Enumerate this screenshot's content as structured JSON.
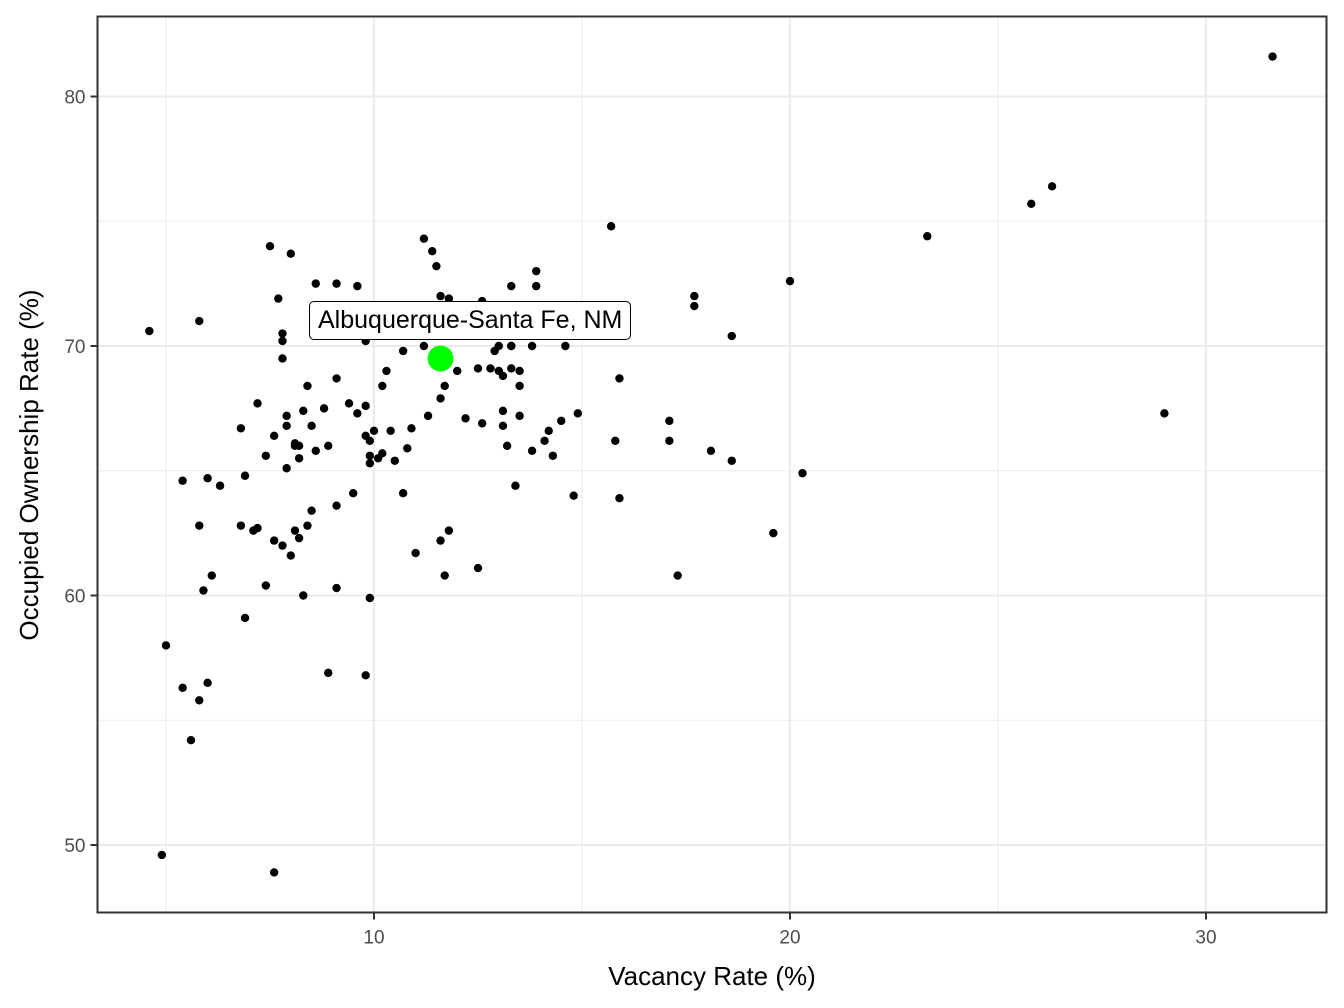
{
  "chart_data": {
    "type": "scatter",
    "title": "",
    "xlabel": "Vacancy Rate (%)",
    "ylabel": "Occupied Ownership Rate (%)",
    "xlim": [
      3.3,
      32.9
    ],
    "ylim": [
      47.3,
      83.3
    ],
    "x_ticks": [
      10,
      20,
      30
    ],
    "y_ticks": [
      50,
      60,
      70,
      80
    ],
    "grid": true,
    "legend": "none",
    "point_color": "#000000",
    "highlight": {
      "label": "Albuquerque-Santa Fe, NM",
      "x": 11.6,
      "y": 69.5,
      "color": "#00ff00"
    },
    "points": [
      [
        31.6,
        81.6
      ],
      [
        26.3,
        76.4
      ],
      [
        25.8,
        75.7
      ],
      [
        23.3,
        74.4
      ],
      [
        29.0,
        67.3
      ],
      [
        20.0,
        72.6
      ],
      [
        20.3,
        64.9
      ],
      [
        19.6,
        62.5
      ],
      [
        18.6,
        70.4
      ],
      [
        18.1,
        65.8
      ],
      [
        18.6,
        65.4
      ],
      [
        17.7,
        72.0
      ],
      [
        17.7,
        71.6
      ],
      [
        17.1,
        67.0
      ],
      [
        17.1,
        66.2
      ],
      [
        17.3,
        60.8
      ],
      [
        15.8,
        66.2
      ],
      [
        15.9,
        63.9
      ],
      [
        15.7,
        74.8
      ],
      [
        15.9,
        68.7
      ],
      [
        14.9,
        67.3
      ],
      [
        14.8,
        64.0
      ],
      [
        14.6,
        70.0
      ],
      [
        14.5,
        67.0
      ],
      [
        14.2,
        66.6
      ],
      [
        14.3,
        65.6
      ],
      [
        14.1,
        66.2
      ],
      [
        13.9,
        73.0
      ],
      [
        13.3,
        72.4
      ],
      [
        13.9,
        72.4
      ],
      [
        12.6,
        71.8
      ],
      [
        13.0,
        70.0
      ],
      [
        12.9,
        69.8
      ],
      [
        13.3,
        70.0
      ],
      [
        13.3,
        70.0
      ],
      [
        13.8,
        70.0
      ],
      [
        12.5,
        69.1
      ],
      [
        12.8,
        69.1
      ],
      [
        13.3,
        69.1
      ],
      [
        13.5,
        69.0
      ],
      [
        13.0,
        69.0
      ],
      [
        13.1,
        68.8
      ],
      [
        13.5,
        68.4
      ],
      [
        13.1,
        67.4
      ],
      [
        13.5,
        67.2
      ],
      [
        12.2,
        67.1
      ],
      [
        12.6,
        66.9
      ],
      [
        13.1,
        66.8
      ],
      [
        13.8,
        65.8
      ],
      [
        13.2,
        66.0
      ],
      [
        13.4,
        64.4
      ],
      [
        12.5,
        61.1
      ],
      [
        4.6,
        70.6
      ],
      [
        4.9,
        49.6
      ],
      [
        5.0,
        58.0
      ],
      [
        5.4,
        56.3
      ],
      [
        5.4,
        64.6
      ],
      [
        5.8,
        71.0
      ],
      [
        5.8,
        62.8
      ],
      [
        5.8,
        55.8
      ],
      [
        5.9,
        60.2
      ],
      [
        6.0,
        64.7
      ],
      [
        6.0,
        56.5
      ],
      [
        6.1,
        60.8
      ],
      [
        6.3,
        64.4
      ],
      [
        5.6,
        54.2
      ],
      [
        6.8,
        66.7
      ],
      [
        6.8,
        62.8
      ],
      [
        6.9,
        64.8
      ],
      [
        6.9,
        59.1
      ],
      [
        7.1,
        62.6
      ],
      [
        7.2,
        62.7
      ],
      [
        7.2,
        67.7
      ],
      [
        7.4,
        65.6
      ],
      [
        7.4,
        60.4
      ],
      [
        7.6,
        62.2
      ],
      [
        7.5,
        74.0
      ],
      [
        7.6,
        66.4
      ],
      [
        7.6,
        48.9
      ],
      [
        7.7,
        71.9
      ],
      [
        7.8,
        62.0
      ],
      [
        7.8,
        70.5
      ],
      [
        7.8,
        70.2
      ],
      [
        7.8,
        69.5
      ],
      [
        7.9,
        67.2
      ],
      [
        7.9,
        66.8
      ],
      [
        7.9,
        65.1
      ],
      [
        8.0,
        61.6
      ],
      [
        8.0,
        73.7
      ],
      [
        8.1,
        66.1
      ],
      [
        8.1,
        66.0
      ],
      [
        8.1,
        62.6
      ],
      [
        8.2,
        62.3
      ],
      [
        8.2,
        66.0
      ],
      [
        8.2,
        65.5
      ],
      [
        8.3,
        60.0
      ],
      [
        8.3,
        67.4
      ],
      [
        8.4,
        62.8
      ],
      [
        8.4,
        68.4
      ],
      [
        8.5,
        63.4
      ],
      [
        8.5,
        66.8
      ],
      [
        8.6,
        72.5
      ],
      [
        8.6,
        65.8
      ],
      [
        8.8,
        67.5
      ],
      [
        8.9,
        66.0
      ],
      [
        8.9,
        56.9
      ],
      [
        9.1,
        72.5
      ],
      [
        9.1,
        63.6
      ],
      [
        9.1,
        68.7
      ],
      [
        9.1,
        60.3
      ],
      [
        9.4,
        67.7
      ],
      [
        9.5,
        64.1
      ],
      [
        9.6,
        72.4
      ],
      [
        9.6,
        67.3
      ],
      [
        9.8,
        56.8
      ],
      [
        9.8,
        70.2
      ],
      [
        9.8,
        66.4
      ],
      [
        9.8,
        67.6
      ],
      [
        9.9,
        66.2
      ],
      [
        9.9,
        65.3
      ],
      [
        9.9,
        65.6
      ],
      [
        9.9,
        59.9
      ],
      [
        10.0,
        66.6
      ],
      [
        10.1,
        65.5
      ],
      [
        10.2,
        68.4
      ],
      [
        10.2,
        65.7
      ],
      [
        10.3,
        69.0
      ],
      [
        10.4,
        66.6
      ],
      [
        10.5,
        65.4
      ],
      [
        10.7,
        64.1
      ],
      [
        10.7,
        69.8
      ],
      [
        10.8,
        65.9
      ],
      [
        10.9,
        66.7
      ],
      [
        11.0,
        61.7
      ],
      [
        11.2,
        74.3
      ],
      [
        11.2,
        70.0
      ],
      [
        11.3,
        67.2
      ],
      [
        11.4,
        73.8
      ],
      [
        11.5,
        73.2
      ],
      [
        11.6,
        67.9
      ],
      [
        11.6,
        62.2
      ],
      [
        11.6,
        72.0
      ],
      [
        11.7,
        68.4
      ],
      [
        11.7,
        60.8
      ],
      [
        11.8,
        71.1
      ],
      [
        11.8,
        62.6
      ],
      [
        11.8,
        71.9
      ],
      [
        12.0,
        69.0
      ]
    ]
  }
}
